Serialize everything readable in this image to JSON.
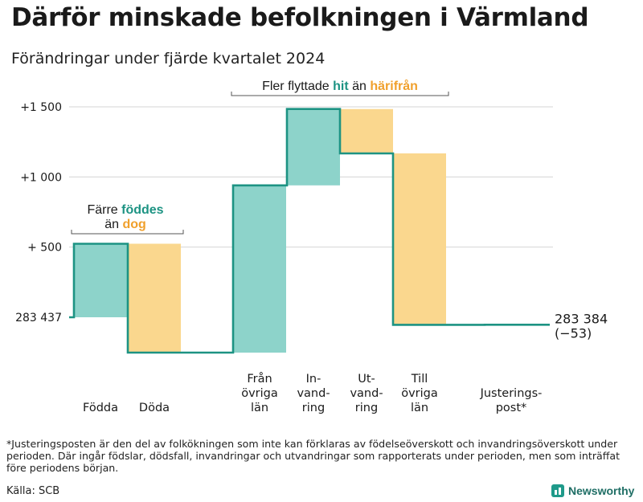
{
  "header": {
    "title": "Därför minskade befolkningen i Värmland",
    "subtitle": "Förändringar under fjärde kvartalet 2024"
  },
  "chart_data": {
    "type": "waterfall",
    "title": "Därför minskade befolkningen i Värmland",
    "subtitle": "Förändringar under fjärde kvartalet 2024",
    "start_label": "283 437",
    "start_value": 283437,
    "end_label": "283 384",
    "end_change_label": "(−53)",
    "end_value": 283384,
    "y_ticks": [
      "+1 500",
      "+1 000",
      "+  500"
    ],
    "y_tick_values": [
      1500,
      1000,
      500
    ],
    "ylim": [
      -250,
      1500
    ],
    "steps": [
      {
        "label": "Födda",
        "lines": [
          "Födda"
        ],
        "change": 524,
        "kind": "inflow"
      },
      {
        "label": "Döda",
        "lines": [
          "Döda"
        ],
        "change": -776,
        "kind": "outflow"
      },
      {
        "label": "Från övriga län",
        "lines": [
          "Från",
          "övriga",
          "län"
        ],
        "change": 1192,
        "kind": "inflow"
      },
      {
        "label": "In-vandring",
        "lines": [
          "In-",
          "vand-",
          "ring"
        ],
        "change": 544,
        "kind": "inflow"
      },
      {
        "label": "Ut-vandring",
        "lines": [
          "Ut-",
          "vand-",
          "ring"
        ],
        "change": -316,
        "kind": "outflow"
      },
      {
        "label": "Till övriga län",
        "lines": [
          "Till",
          "övriga",
          "län"
        ],
        "change": -1222,
        "kind": "outflow"
      },
      {
        "label": "Justerings-post*",
        "lines": [
          "Justerings-",
          "post*"
        ],
        "change": 1,
        "kind": "adjust"
      }
    ],
    "annotations": [
      {
        "id": "births",
        "parts": [
          {
            "text": "Färre ",
            "style": "plain"
          },
          {
            "text": "föddes",
            "style": "inflow"
          },
          {
            "text": "än ",
            "style": "plain"
          },
          {
            "text": "dog",
            "style": "outflow"
          }
        ]
      },
      {
        "id": "moves",
        "parts": [
          {
            "text": "Fler flyttade ",
            "style": "plain"
          },
          {
            "text": "hit",
            "style": "inflow"
          },
          {
            "text": " än ",
            "style": "plain"
          },
          {
            "text": "härifrån",
            "style": "outflow"
          }
        ]
      }
    ],
    "colors": {
      "inflow": "#8dd3ca",
      "outflow": "#fad78e",
      "line": "#1d9383",
      "inflow_text": "#1d9383",
      "outflow_text": "#f0a02c",
      "grid": "#d4d4d4"
    },
    "grid": true
  },
  "footnote": "*Justeringsposten är den del av folkökningen som inte kan förklaras av födelseöverskott och invandringsöverskott under perioden. Där ingår födslar, dödsfall, invandringar och utvandringar som rapporterats under perioden, men som inträffat före periodens början.",
  "source": "Källa: SCB",
  "brand": {
    "name": "Newsworthy",
    "icon": "bar-chart-icon"
  }
}
